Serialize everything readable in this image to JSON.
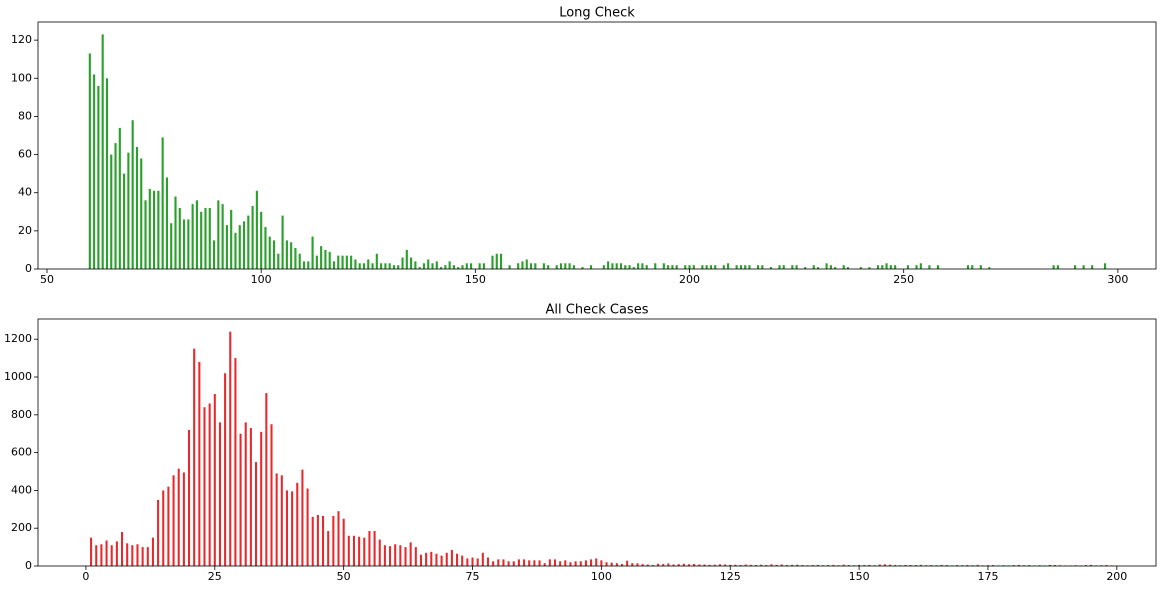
{
  "chart_data": [
    {
      "type": "bar",
      "title": "Long Check",
      "color": "#2ca02c",
      "x": [
        60,
        61,
        62,
        63,
        64,
        65,
        66,
        67,
        68,
        69,
        70,
        71,
        72,
        73,
        74,
        75,
        76,
        77,
        78,
        79,
        80,
        81,
        82,
        83,
        84,
        85,
        86,
        87,
        88,
        89,
        90,
        91,
        92,
        93,
        94,
        95,
        96,
        97,
        98,
        99,
        100,
        101,
        102,
        103,
        104,
        105,
        106,
        107,
        108,
        109,
        110,
        111,
        112,
        113,
        114,
        115,
        116,
        117,
        118,
        119,
        120,
        121,
        122,
        123,
        124,
        125,
        126,
        127,
        128,
        129,
        130,
        131,
        132,
        133,
        134,
        135,
        136,
        137,
        138,
        139,
        140,
        141,
        142,
        143,
        144,
        145,
        146,
        147,
        148,
        149,
        151,
        152,
        154,
        155,
        156,
        158,
        160,
        161,
        162,
        163,
        164,
        166,
        167,
        169,
        170,
        171,
        172,
        173,
        175,
        177,
        180,
        181,
        182,
        183,
        184,
        185,
        186,
        187,
        188,
        189,
        190,
        192,
        194,
        195,
        196,
        197,
        199,
        200,
        201,
        203,
        204,
        205,
        206,
        208,
        209,
        211,
        212,
        213,
        214,
        216,
        217,
        219,
        221,
        222,
        224,
        225,
        227,
        229,
        230,
        232,
        233,
        234,
        236,
        237,
        240,
        242,
        244,
        245,
        246,
        247,
        248,
        251,
        253,
        254,
        256,
        258,
        265,
        266,
        268,
        270,
        285,
        286,
        290,
        292,
        294,
        297
      ],
      "values": [
        113,
        102,
        96,
        123,
        100,
        60,
        66,
        74,
        50,
        61,
        78,
        64,
        58,
        36,
        42,
        41,
        41,
        69,
        48,
        24,
        38,
        32,
        26,
        26,
        34,
        36,
        30,
        32,
        32,
        15,
        36,
        34,
        23,
        31,
        19,
        23,
        25,
        28,
        33,
        41,
        30,
        22,
        17,
        15,
        8,
        28,
        15,
        14,
        11,
        8,
        4,
        4,
        17,
        7,
        12,
        10,
        9,
        4,
        7,
        7,
        7,
        7,
        5,
        3,
        3,
        5,
        3,
        8,
        3,
        3,
        3,
        2,
        2,
        6,
        10,
        6,
        4,
        1,
        3,
        5,
        3,
        4,
        1,
        2,
        4,
        2,
        1,
        2,
        3,
        3,
        3,
        3,
        7,
        8,
        8,
        2,
        3,
        4,
        5,
        3,
        3,
        3,
        2,
        2,
        3,
        3,
        3,
        2,
        1,
        2,
        2,
        4,
        3,
        3,
        3,
        2,
        2,
        1,
        3,
        3,
        2,
        3,
        3,
        2,
        2,
        2,
        2,
        2,
        2,
        2,
        2,
        2,
        2,
        2,
        3,
        2,
        2,
        2,
        2,
        2,
        2,
        1,
        2,
        2,
        2,
        2,
        1,
        2,
        1,
        3,
        2,
        1,
        2,
        1,
        1,
        1,
        2,
        2,
        3,
        2,
        2,
        2,
        2,
        3,
        2,
        2,
        2,
        2,
        2,
        1,
        2,
        2,
        2,
        2,
        2,
        3
      ],
      "xlim": [
        47.9,
        308.9
      ],
      "xticks": [
        50,
        100,
        150,
        200,
        250,
        300
      ],
      "ylim": [
        0,
        129.5
      ],
      "yticks": [
        0,
        20,
        40,
        60,
        80,
        100,
        120
      ]
    },
    {
      "type": "bar",
      "title": "All Check Cases",
      "color": "#e8282a",
      "x": [
        1,
        2,
        3,
        4,
        5,
        6,
        7,
        8,
        9,
        10,
        11,
        12,
        13,
        14,
        15,
        16,
        17,
        18,
        19,
        20,
        21,
        22,
        23,
        24,
        25,
        26,
        27,
        28,
        29,
        30,
        31,
        32,
        33,
        34,
        35,
        36,
        37,
        38,
        39,
        40,
        41,
        42,
        43,
        44,
        45,
        46,
        47,
        48,
        49,
        50,
        51,
        52,
        53,
        54,
        55,
        56,
        57,
        58,
        59,
        60,
        61,
        62,
        63,
        64,
        65,
        66,
        67,
        68,
        69,
        70,
        71,
        72,
        73,
        74,
        75,
        76,
        77,
        78,
        79,
        80,
        81,
        82,
        83,
        84,
        85,
        86,
        87,
        88,
        89,
        90,
        91,
        92,
        93,
        94,
        95,
        96,
        97,
        98,
        99,
        100,
        101,
        102,
        103,
        104,
        105,
        106,
        107,
        108,
        109,
        110,
        111,
        112,
        113,
        114,
        115,
        116,
        117,
        118,
        119,
        120,
        121,
        122,
        123,
        124,
        125,
        126,
        127,
        128,
        129,
        130,
        131,
        132,
        133,
        134,
        135,
        136,
        137,
        138,
        139,
        140,
        141,
        142,
        143,
        144,
        145,
        146,
        147,
        148,
        149,
        150,
        151,
        152,
        153,
        154,
        155,
        156,
        157,
        158,
        159,
        160,
        161,
        162,
        163,
        164,
        165,
        166,
        167,
        168,
        169,
        170,
        171,
        172,
        173,
        174,
        175,
        176,
        177,
        178,
        179,
        180,
        181,
        182,
        183,
        184,
        185,
        186,
        187,
        188,
        189,
        190,
        191,
        192,
        193,
        194,
        195,
        196,
        197,
        198,
        199
      ],
      "values": [
        150,
        110,
        115,
        135,
        110,
        130,
        180,
        120,
        110,
        115,
        100,
        100,
        150,
        350,
        400,
        420,
        480,
        515,
        495,
        720,
        1150,
        1080,
        840,
        860,
        910,
        760,
        1020,
        1240,
        1100,
        700,
        760,
        730,
        550,
        710,
        915,
        750,
        490,
        480,
        400,
        395,
        440,
        510,
        410,
        260,
        270,
        265,
        185,
        265,
        290,
        250,
        160,
        160,
        155,
        150,
        185,
        185,
        140,
        110,
        105,
        115,
        110,
        100,
        125,
        100,
        60,
        70,
        75,
        65,
        55,
        70,
        85,
        65,
        55,
        40,
        45,
        40,
        70,
        45,
        25,
        35,
        35,
        25,
        25,
        35,
        35,
        30,
        30,
        30,
        15,
        35,
        35,
        25,
        30,
        20,
        25,
        25,
        30,
        35,
        40,
        30,
        20,
        18,
        15,
        10,
        28,
        15,
        14,
        10,
        8,
        5,
        12,
        10,
        14,
        8,
        10,
        12,
        9,
        11,
        8,
        8,
        6,
        7,
        9,
        8,
        6,
        7,
        5,
        8,
        6,
        5,
        7,
        5,
        9,
        6,
        8,
        5,
        6,
        7,
        5,
        4,
        5,
        6,
        4,
        5,
        6,
        4,
        7,
        5,
        4,
        6,
        5,
        6,
        4,
        8,
        9,
        7,
        5,
        4,
        6,
        5,
        5,
        6,
        4,
        5,
        4,
        6,
        5,
        3,
        5,
        4,
        5,
        4,
        6,
        3,
        4,
        5,
        3,
        4,
        3,
        5,
        6,
        4,
        5,
        3,
        4,
        3,
        6,
        5,
        4,
        3,
        3,
        4,
        3,
        5,
        6,
        3,
        4,
        5,
        3
      ],
      "xlim": [
        -9.3,
        207.6
      ],
      "xticks": [
        0,
        25,
        50,
        75,
        100,
        125,
        150,
        175,
        200
      ],
      "ylim": [
        0,
        1307
      ],
      "yticks": [
        0,
        200,
        400,
        600,
        800,
        1000,
        1200
      ]
    }
  ]
}
